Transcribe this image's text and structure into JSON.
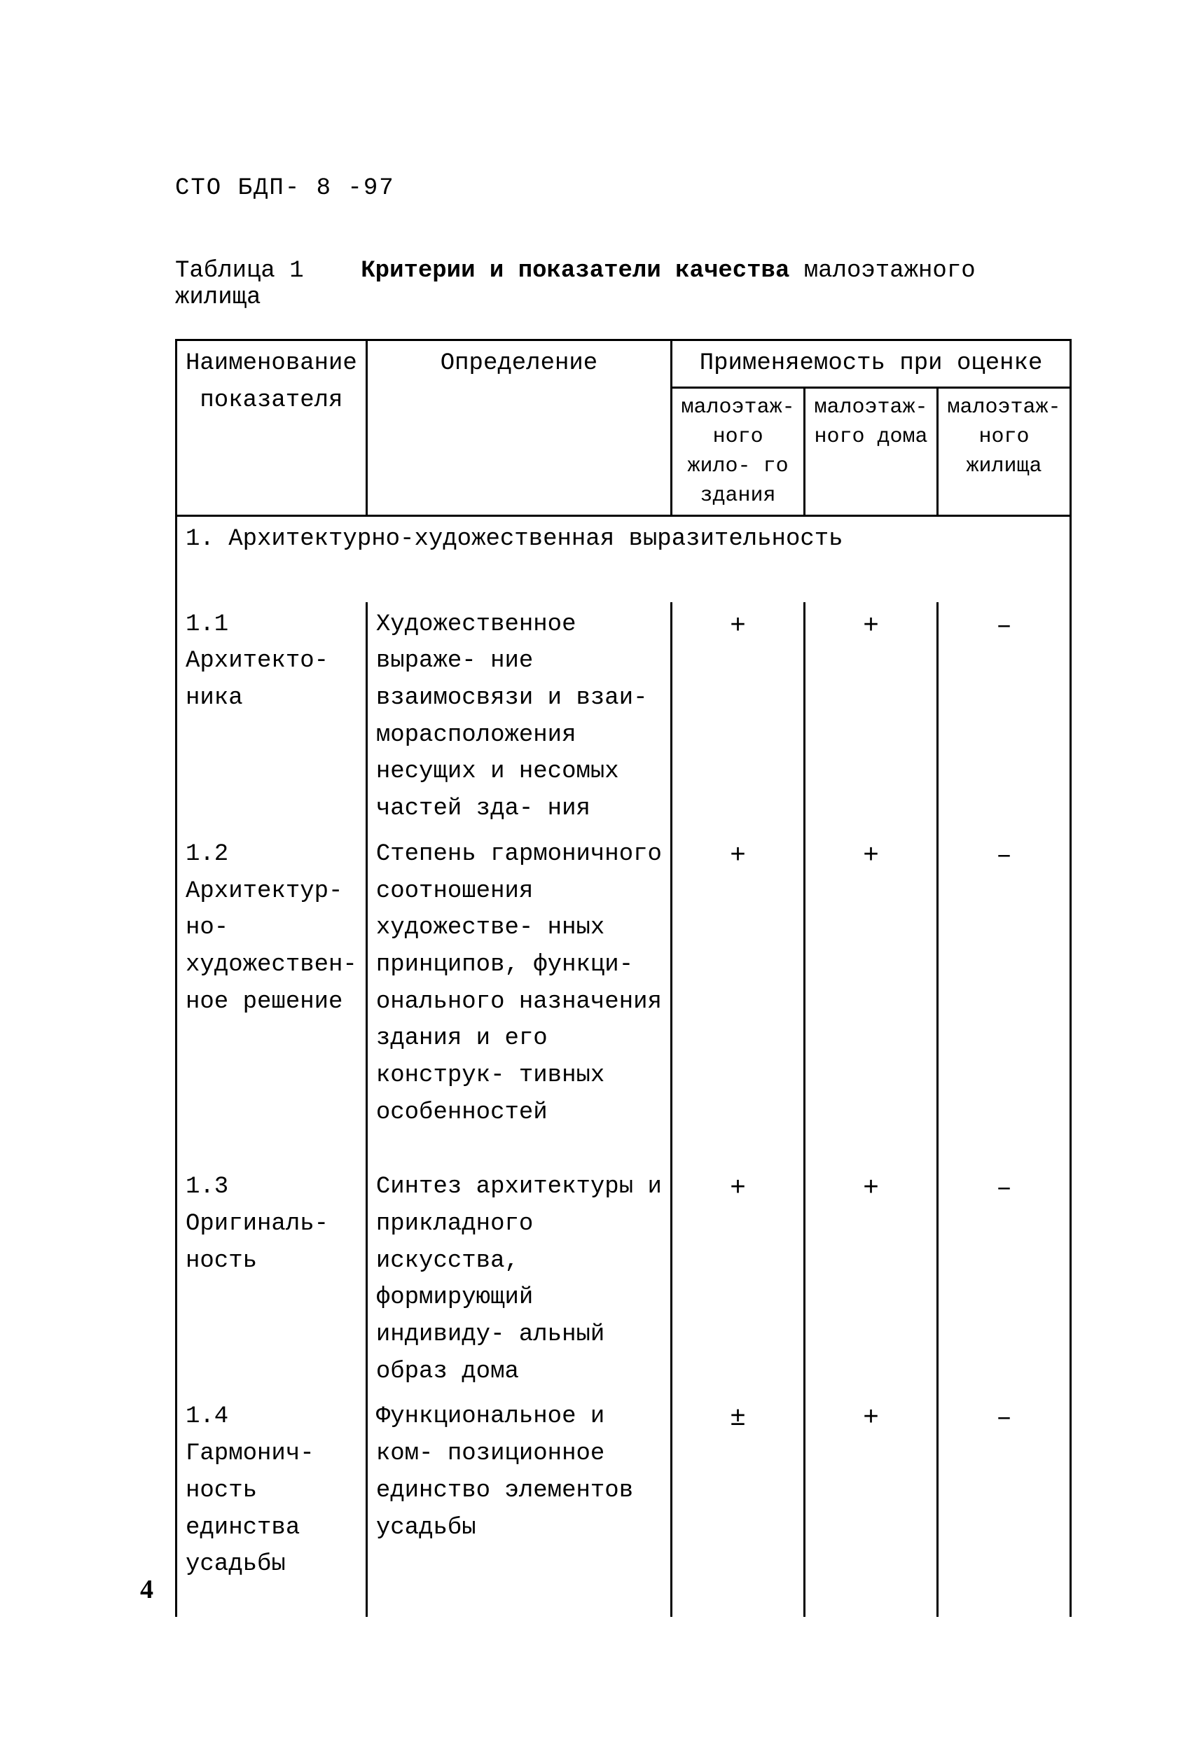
{
  "doc_code": "СТО БДП- 8 -97",
  "caption_prefix": "Таблица 1",
  "caption_bold": "Критерии и показатели качества",
  "caption_rest": "малоэтажного жилища",
  "header": {
    "col1": "Наименование показателя",
    "col2": "Определение",
    "appl_top": "Применяемость при оценке",
    "sub1": "малоэтаж- ного жило- го здания",
    "sub2": "малоэтаж- ного дома",
    "sub3": "малоэтаж- ного жилища"
  },
  "section1_title": "1. Архитектурно-художественная   выразительность",
  "rows": [
    {
      "name": "1.1 Архитекто- ника",
      "def": "Художественное выраже- ние взаимосвязи и взаи- морасположения несущих и несомых частей зда- ния",
      "m1": "+",
      "m2": "+",
      "m3": "–"
    },
    {
      "name": "1.2 Архитектур- но-художествен- ное решение",
      "def": "Степень гармоничного соотношения художестве- нных принципов, функци- онального назначения здания и его конструк- тивных особенностей",
      "m1": "+",
      "m2": "+",
      "m3": "–"
    },
    {
      "name": "1.3 Оригиналь- ность",
      "def": "Синтез архитектуры и прикладного искусства, формирующий индивиду- альный образ дома",
      "m1": "+",
      "m2": "+",
      "m3": "–"
    },
    {
      "name": "1.4 Гармонич- ность единства усадьбы",
      "def": "Функциональное и ком- позиционное единство элементов усадьбы",
      "m1": "±",
      "m2": "+",
      "m3": "–"
    }
  ],
  "page_number": "4"
}
